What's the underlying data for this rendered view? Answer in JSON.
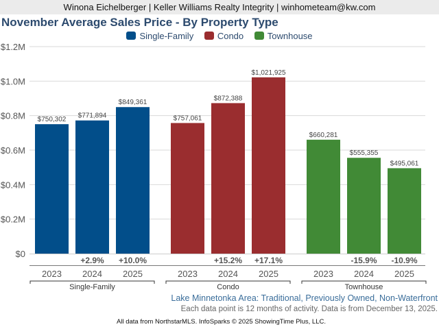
{
  "header": {
    "text": "Winona Eichelberger | Keller Williams Realty Integrity | winhometeam@kw.com"
  },
  "chart_data": {
    "type": "bar",
    "title": "November Average Sales Price - By Property Type",
    "xlabel": "",
    "ylabel": "",
    "ylim": [
      0,
      1200000
    ],
    "y_ticks": [
      {
        "value": 0,
        "label": "$0"
      },
      {
        "value": 200000,
        "label": "$0.2M"
      },
      {
        "value": 400000,
        "label": "$0.4M"
      },
      {
        "value": 600000,
        "label": "$0.6M"
      },
      {
        "value": 800000,
        "label": "$0.8M"
      },
      {
        "value": 1000000,
        "label": "$1.0M"
      },
      {
        "value": 1200000,
        "label": "$1.2M"
      }
    ],
    "grid": true,
    "legend_position": "top-center",
    "categories": [
      "2023",
      "2024",
      "2025"
    ],
    "series": [
      {
        "name": "Single-Family",
        "color": "#024e8a",
        "values": [
          750302,
          771894,
          849361
        ],
        "value_labels": [
          "$750,302",
          "$771,894",
          "$849,361"
        ],
        "change_labels": [
          "",
          "+2.9%",
          "+10.0%"
        ]
      },
      {
        "name": "Condo",
        "color": "#9a2d2f",
        "values": [
          757061,
          872388,
          1021925
        ],
        "value_labels": [
          "$757,061",
          "$872,388",
          "$1,021,925"
        ],
        "change_labels": [
          "",
          "+15.2%",
          "+17.1%"
        ]
      },
      {
        "name": "Townhouse",
        "color": "#418a36",
        "values": [
          660281,
          555355,
          495061
        ],
        "value_labels": [
          "$660,281",
          "$555,355",
          "$495,061"
        ],
        "change_labels": [
          "",
          "-15.9%",
          "-10.9%"
        ]
      }
    ]
  },
  "footer": {
    "area_note": "Lake Minnetonka Area: Traditional, Previously Owned, Non-Waterfront",
    "period_note": "Each data point is 12 months of activity. Data is from December 13, 2025.",
    "source_note": "All data from NorthstarMLS. InfoSparks © 2025 ShowingTime Plus, LLC."
  }
}
